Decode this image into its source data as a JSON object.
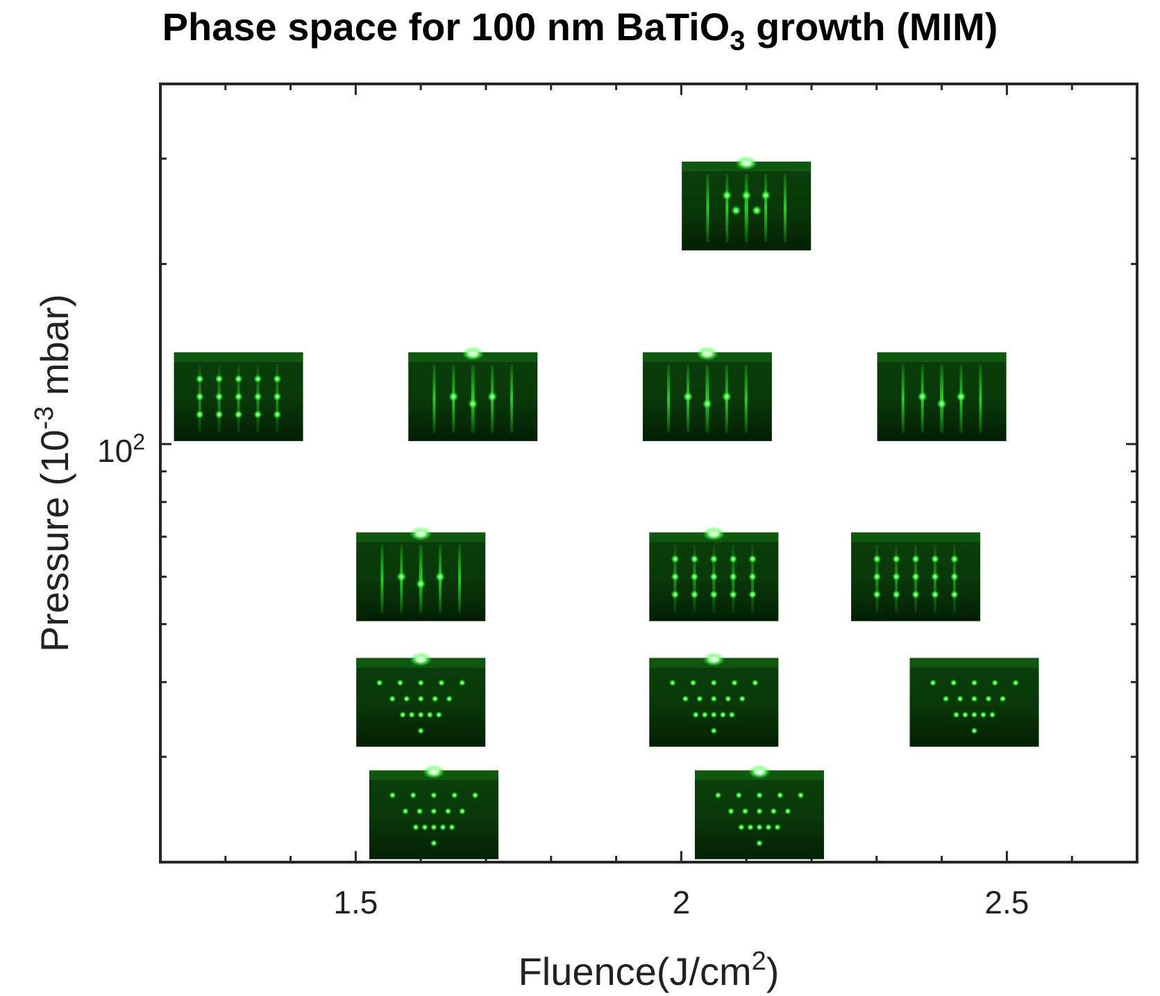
{
  "chart_data": {
    "type": "scatter",
    "title_parts": {
      "before": "Phase space for 100 nm BaTiO",
      "sub": "3",
      "after": " growth (MIM)"
    },
    "xlabel_parts": {
      "before": "Fluence(J/cm",
      "sup": "2",
      "after": ")"
    },
    "ylabel_parts": {
      "before": "Pressure (10",
      "sup": "-3",
      "after": " mbar)"
    },
    "x_scale": "linear",
    "y_scale": "log",
    "xlim": [
      1.2,
      2.7
    ],
    "ylim": [
      20,
      400
    ],
    "xticks": [
      1.5,
      2,
      2.5
    ],
    "xtick_labels": [
      "1.5",
      "2",
      "2.5"
    ],
    "x_minor_step": 0.1,
    "yticks": [
      100
    ],
    "ytick_label": {
      "base": "10",
      "exp": "2"
    },
    "y_minor_ticks": [
      30,
      40,
      50,
      60,
      70,
      80,
      90,
      200,
      300
    ],
    "grid": false,
    "marker": "RHEED pattern image",
    "marker_color": "#14c814",
    "points": [
      {
        "x": 2.1,
        "y": 250,
        "pattern": "streak-spots"
      },
      {
        "x": 1.32,
        "y": 120,
        "pattern": "spots"
      },
      {
        "x": 1.68,
        "y": 120,
        "pattern": "streaks"
      },
      {
        "x": 2.04,
        "y": 120,
        "pattern": "streaks"
      },
      {
        "x": 2.4,
        "y": 120,
        "pattern": "streaks"
      },
      {
        "x": 1.6,
        "y": 60,
        "pattern": "streaks"
      },
      {
        "x": 2.05,
        "y": 60,
        "pattern": "spots"
      },
      {
        "x": 2.36,
        "y": 60,
        "pattern": "spots"
      },
      {
        "x": 1.6,
        "y": 37,
        "pattern": "arc"
      },
      {
        "x": 2.05,
        "y": 37,
        "pattern": "arc"
      },
      {
        "x": 2.45,
        "y": 37,
        "pattern": "arc"
      },
      {
        "x": 1.62,
        "y": 24,
        "pattern": "arc"
      },
      {
        "x": 2.12,
        "y": 24,
        "pattern": "arc"
      }
    ]
  }
}
